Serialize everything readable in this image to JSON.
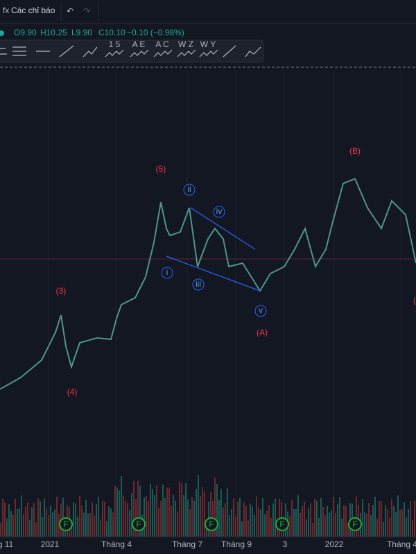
{
  "toolbar": {
    "indicators": "Các chỉ báo"
  },
  "legend": {
    "open": "O9.90",
    "high": "H10.25",
    "low": "L9.90",
    "close": "C10.10",
    "change": "−0.10 (−0.98%)"
  },
  "tools": [
    "1 5",
    "A E",
    "A C",
    "W Z",
    "W Y"
  ],
  "waves": {
    "major": [
      "(3)",
      "(4)",
      "(5)",
      "(A)",
      "(B)",
      "("
    ],
    "minor": [
      "i",
      "ii",
      "iii",
      "iv",
      "v"
    ]
  },
  "events": [
    "F",
    "F",
    "F",
    "F",
    "F"
  ],
  "x_axis": [
    "g 11",
    "2021",
    "Tháng 4",
    "Tháng 7",
    "Tháng 9",
    "3",
    "2022",
    "Tháng 4"
  ]
}
